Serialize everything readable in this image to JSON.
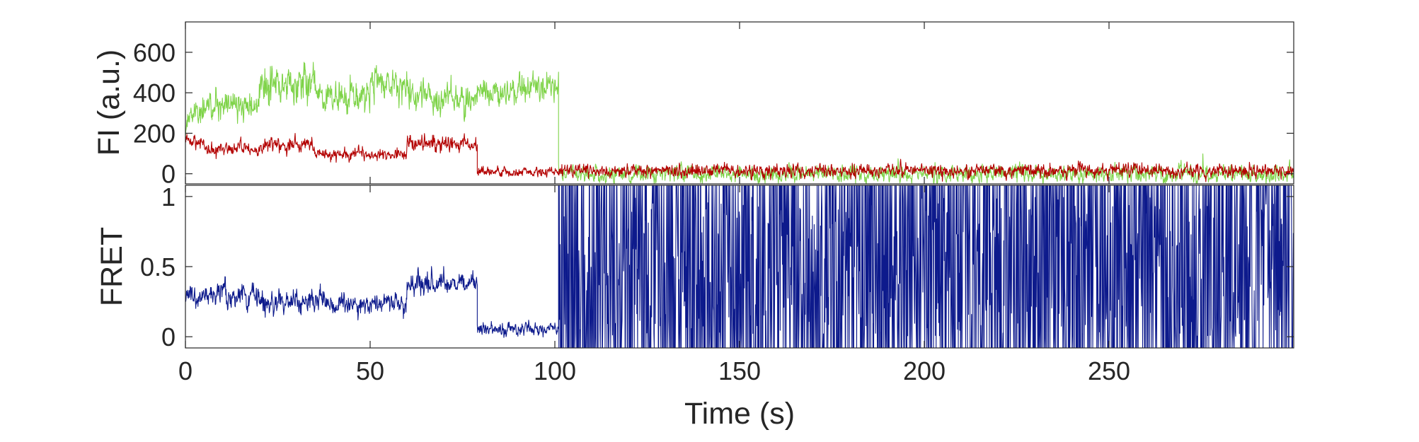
{
  "chart_data": [
    {
      "type": "line",
      "panel": "top",
      "title": "",
      "xlabel": "",
      "ylabel": "FI (a.u.)",
      "xlim": [
        0,
        300
      ],
      "ylim": [
        -50,
        750
      ],
      "yticks": [
        0,
        200,
        400,
        600
      ],
      "ytick_labels": [
        "0",
        "200",
        "400",
        "600"
      ],
      "grid": false,
      "legend": "none",
      "series": [
        {
          "color": "#7ed348",
          "segments": [
            {
              "x_start": 0,
              "x_end": 5,
              "mean": 300,
              "noise": 85
            },
            {
              "x_start": 5,
              "x_end": 20,
              "mean": 330,
              "noise": 90
            },
            {
              "x_start": 20,
              "x_end": 35,
              "mean": 440,
              "noise": 120
            },
            {
              "x_start": 35,
              "x_end": 50,
              "mean": 370,
              "noise": 95
            },
            {
              "x_start": 50,
              "x_end": 60,
              "mean": 450,
              "noise": 110
            },
            {
              "x_start": 60,
              "x_end": 79,
              "mean": 380,
              "noise": 95
            },
            {
              "x_start": 79,
              "x_end": 90,
              "mean": 400,
              "noise": 85
            },
            {
              "x_start": 90,
              "x_end": 101,
              "mean": 440,
              "noise": 95
            },
            {
              "x_start": 101,
              "x_end": 300,
              "mean": 0,
              "noise": 52
            }
          ]
        },
        {
          "color": "#b30000",
          "segments": [
            {
              "x_start": 0,
              "x_end": 5,
              "mean": 160,
              "noise": 45
            },
            {
              "x_start": 5,
              "x_end": 20,
              "mean": 120,
              "noise": 40
            },
            {
              "x_start": 20,
              "x_end": 35,
              "mean": 145,
              "noise": 45
            },
            {
              "x_start": 35,
              "x_end": 60,
              "mean": 95,
              "noise": 40
            },
            {
              "x_start": 60,
              "x_end": 79,
              "mean": 150,
              "noise": 50
            },
            {
              "x_start": 79,
              "x_end": 101,
              "mean": 10,
              "noise": 28
            },
            {
              "x_start": 101,
              "x_end": 300,
              "mean": 15,
              "noise": 40
            }
          ]
        }
      ]
    },
    {
      "type": "line",
      "panel": "bottom",
      "title": "",
      "xlabel": "Time (s)",
      "ylabel": "FRET",
      "xlim": [
        0,
        300
      ],
      "ylim": [
        -0.08,
        1.08
      ],
      "xticks": [
        0,
        50,
        100,
        150,
        200,
        250
      ],
      "xtick_labels": [
        "0",
        "50",
        "100",
        "150",
        "200",
        "250"
      ],
      "yticks": [
        0,
        0.5,
        1
      ],
      "ytick_labels": [
        "0",
        "0.5",
        "1"
      ],
      "grid": false,
      "legend": "none",
      "series": [
        {
          "color": "#0d1a8c",
          "segments": [
            {
              "x_start": 0,
              "x_end": 20,
              "mean": 0.3,
              "noise": 0.1
            },
            {
              "x_start": 20,
              "x_end": 40,
              "mean": 0.24,
              "noise": 0.11
            },
            {
              "x_start": 40,
              "x_end": 60,
              "mean": 0.24,
              "noise": 0.1
            },
            {
              "x_start": 60,
              "x_end": 79,
              "mean": 0.38,
              "noise": 0.1
            },
            {
              "x_start": 79,
              "x_end": 101,
              "mean": 0.06,
              "noise": 0.06
            },
            {
              "x_start": 101,
              "x_end": 300,
              "mean": 0.5,
              "noise": 0.5
            }
          ]
        }
      ]
    }
  ]
}
